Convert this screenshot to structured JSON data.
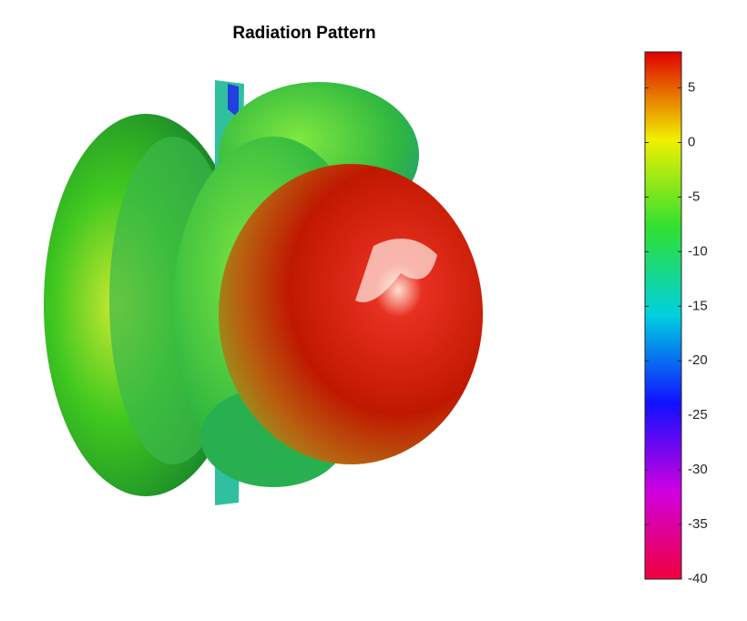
{
  "chart_data": {
    "type": "surface3d",
    "title": "Radiation Pattern",
    "colorbar": {
      "clim": [
        -40,
        8.3
      ],
      "ticks": [
        5,
        0,
        -5,
        -10,
        -15,
        -20,
        -25,
        -30,
        -35,
        -40
      ],
      "colormap": [
        "#f0003c",
        "#d000e0",
        "#1010ff",
        "#00d0e0",
        "#30e030",
        "#f0f000",
        "#e00000"
      ]
    }
  }
}
